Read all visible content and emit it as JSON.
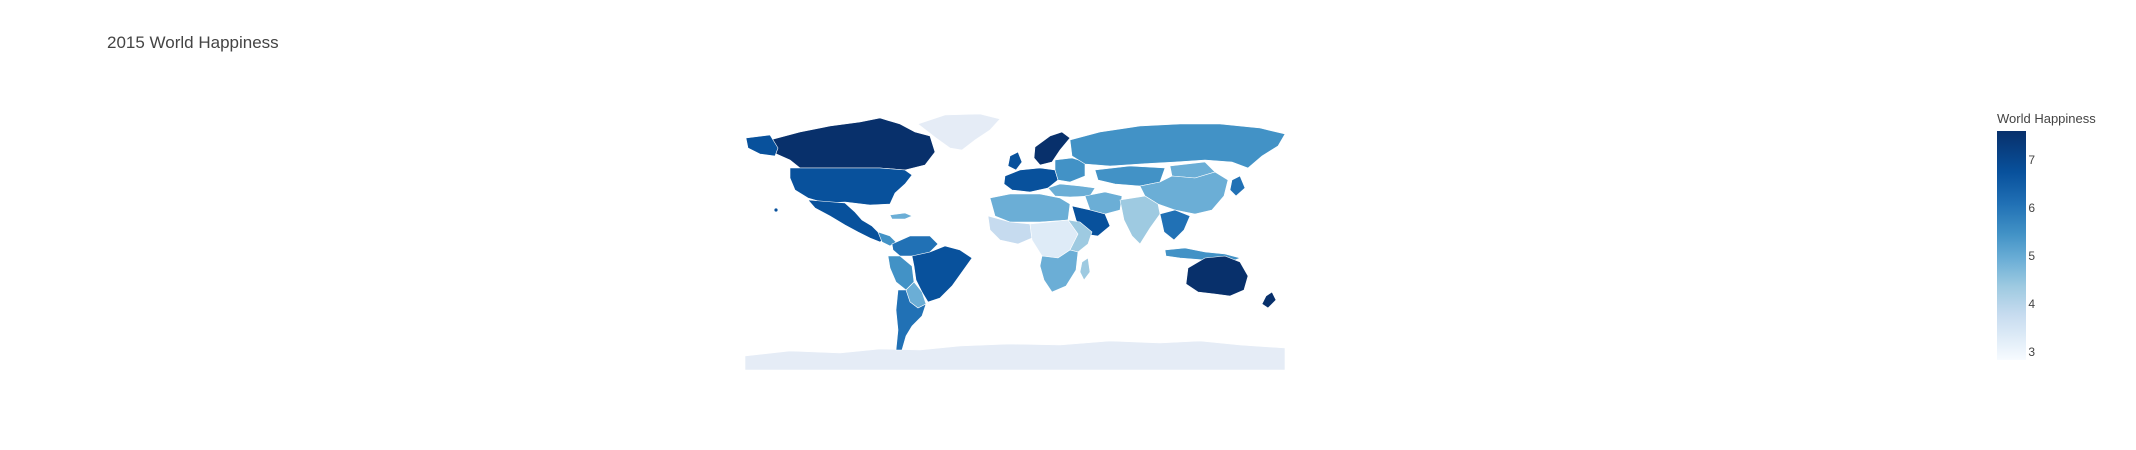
{
  "title": "2015 World Happiness",
  "colorbar": {
    "title": "World Happiness",
    "ticks": [
      "7",
      "6",
      "5",
      "4",
      "3"
    ],
    "range": [
      2.84,
      7.59
    ],
    "colorscale": [
      "#f7fbff",
      "#deebf7",
      "#c6dbef",
      "#9ecae1",
      "#6baed6",
      "#4292c6",
      "#2171b5",
      "#08519c",
      "#08306b"
    ]
  },
  "colors": {
    "land_no_data": "#e5ecf6",
    "border": "#ffffff"
  }
}
